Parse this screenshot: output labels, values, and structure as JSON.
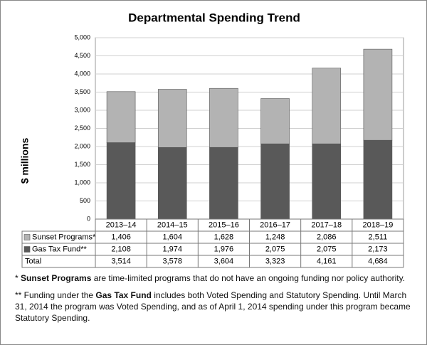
{
  "chart_data": {
    "type": "stacked_bar",
    "title": "Departmental Spending Trend",
    "y_label": "$ millions",
    "categories": [
      "2013–14",
      "2014–15",
      "2015–16",
      "2016–17",
      "2017–18",
      "2018–19"
    ],
    "series": [
      {
        "name": "Sunset Programs*",
        "color": "#b3b3b3",
        "values": [
          1406,
          1604,
          1628,
          1248,
          2086,
          2511
        ],
        "value_labels": [
          "1,406",
          "1,604",
          "1,628",
          "1,248",
          "2,086",
          "2,511"
        ]
      },
      {
        "name": "Gas Tax Fund**",
        "color": "#595959",
        "values": [
          2108,
          1974,
          1976,
          2075,
          2075,
          2173
        ],
        "value_labels": [
          "2,108",
          "1,974",
          "1,976",
          "2,075",
          "2,075",
          "2,173"
        ]
      }
    ],
    "total_name": "Total",
    "totals": [
      3514,
      3578,
      3604,
      3323,
      4161,
      4684
    ],
    "total_labels": [
      "3,514",
      "3,578",
      "3,604",
      "3,323",
      "4,161",
      "4,684"
    ],
    "ylim": [
      0,
      5000
    ],
    "yticks": [
      0,
      {
        "value": 500,
        "label": "500"
      },
      {
        "value": 1000,
        "label": "1,000"
      },
      {
        "value": 1500,
        "label": "1,500"
      },
      {
        "value": 2000,
        "label": "2,000"
      },
      {
        "value": 2500,
        "label": "2,500"
      },
      {
        "value": 3000,
        "label": "3,000"
      },
      {
        "value": 3500,
        "label": "3,500"
      },
      {
        "value": 4000,
        "label": "4,000"
      },
      {
        "value": 4500,
        "label": "4,500"
      },
      {
        "value": 5000,
        "label": "5,000"
      }
    ],
    "grid": true,
    "footnotes": [
      {
        "before": "* ",
        "bold": "Sunset Programs",
        "after": " are time-limited programs that do not have an ongoing funding nor policy authority."
      },
      {
        "before": "** Funding under the ",
        "bold": "Gas Tax Fund",
        "after": " includes both Voted Spending and Statutory Spending. Until March 31, 2014 the program was Voted Spending, and as of April 1, 2014 spending under this program became Statutory Spending."
      }
    ]
  }
}
